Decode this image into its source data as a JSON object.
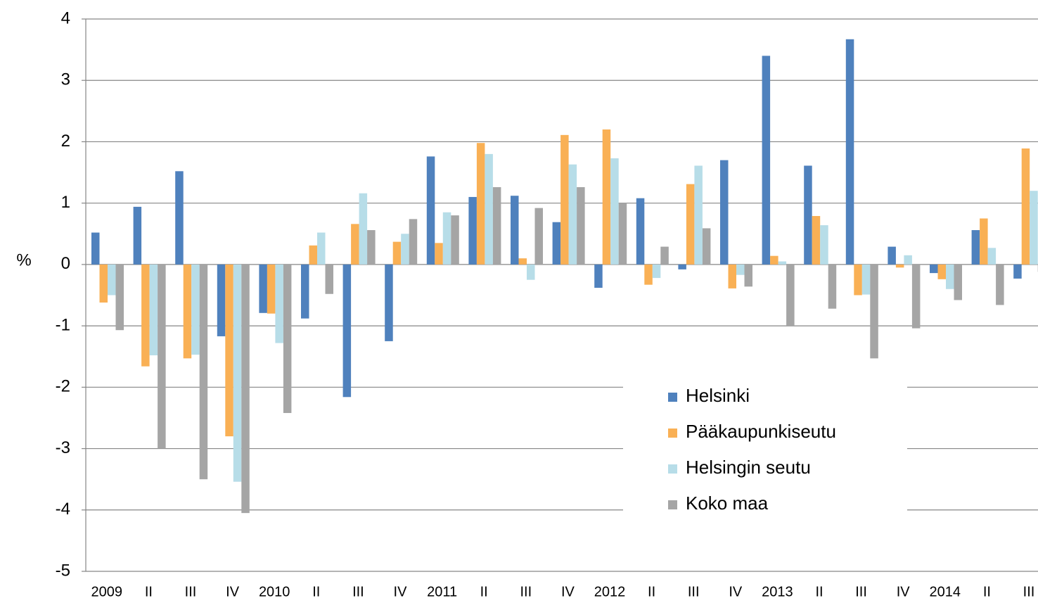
{
  "chart_data": {
    "type": "bar",
    "y_label": "%",
    "categories": [
      "2009",
      "II",
      "III",
      "IV",
      "2010",
      "II",
      "III",
      "IV",
      "2011",
      "II",
      "III",
      "IV",
      "2012",
      "II",
      "III",
      "IV",
      "2013",
      "II",
      "III",
      "IV",
      "2014",
      "II",
      "III"
    ],
    "series": [
      {
        "name": "Helsinki",
        "color": "#4f81bd",
        "values": [
          0.52,
          0.94,
          1.52,
          -1.17,
          -0.79,
          -0.88,
          -2.16,
          -1.25,
          1.76,
          1.1,
          1.12,
          0.69,
          -0.38,
          1.08,
          -0.08,
          1.7,
          3.4,
          1.61,
          3.67,
          0.29,
          -0.14,
          0.56,
          -0.23
        ]
      },
      {
        "name": "Pääkaupunkiseutu",
        "color": "#f9b055",
        "values": [
          -0.62,
          -1.66,
          -1.53,
          -2.8,
          -0.8,
          0.31,
          0.66,
          0.37,
          0.35,
          1.98,
          0.1,
          2.11,
          2.2,
          -0.33,
          1.31,
          -0.39,
          0.14,
          0.79,
          -0.5,
          -0.05,
          -0.24,
          0.75,
          1.89
        ]
      },
      {
        "name": "Helsingin seutu",
        "color": "#b7dde8",
        "values": [
          -0.5,
          -1.48,
          -1.47,
          -3.54,
          -1.28,
          0.52,
          1.16,
          0.5,
          0.85,
          1.8,
          -0.25,
          1.63,
          1.73,
          -0.22,
          1.61,
          -0.17,
          0.05,
          0.64,
          -0.49,
          0.15,
          -0.4,
          0.27,
          1.2
        ]
      },
      {
        "name": "Koko maa",
        "color": "#a5a5a5",
        "values": [
          -1.07,
          -3.0,
          -3.5,
          -4.05,
          -2.42,
          -0.48,
          0.56,
          0.74,
          0.8,
          1.26,
          0.92,
          1.26,
          1.0,
          0.29,
          0.59,
          -0.36,
          -1.0,
          -0.72,
          -1.53,
          -1.04,
          -0.58,
          -0.66,
          -0.12
        ]
      }
    ],
    "ylim": [
      -5,
      4
    ],
    "yticks": [
      -5,
      -4,
      -3,
      -2,
      -1,
      0,
      1,
      2,
      3,
      4
    ],
    "grid": true,
    "legend": "lower-right"
  }
}
